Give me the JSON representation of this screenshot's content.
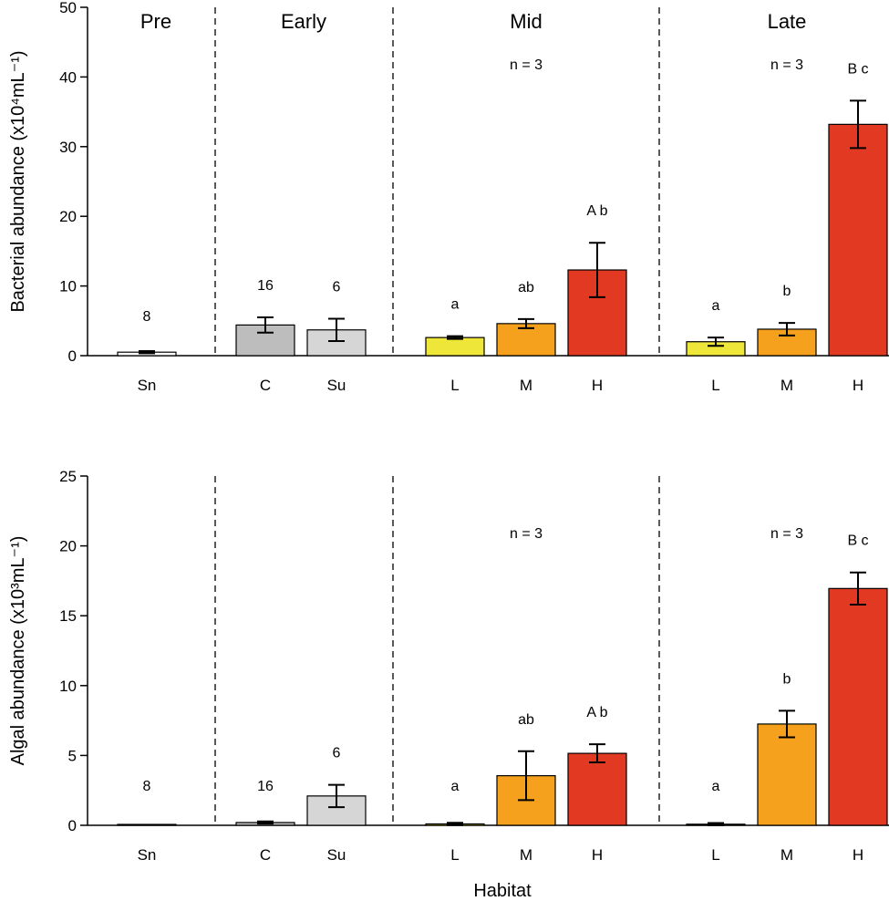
{
  "chart_data": [
    {
      "type": "bar",
      "panel": "top",
      "ylabel": "Bacterial abundance (x10⁴mL⁻¹)",
      "ylim": [
        0,
        50
      ],
      "yticks": [
        "0",
        "10",
        "20",
        "30",
        "40",
        "50"
      ],
      "ytick_values": [
        0,
        10,
        20,
        30,
        40,
        50
      ],
      "stages": [
        "Pre",
        "Early",
        "Mid",
        "Late"
      ],
      "stage_labels_visible": true,
      "stage_n": [
        "",
        "",
        "n = 3",
        "n = 3"
      ],
      "bars": [
        {
          "stage": "Pre",
          "category": "Sn",
          "value": 0.5,
          "error": 0.15,
          "color": "#ffffff",
          "label": "8"
        },
        {
          "stage": "Early",
          "category": "C",
          "value": 4.4,
          "error": 1.1,
          "color": "#bdbdbd",
          "label": "16"
        },
        {
          "stage": "Early",
          "category": "Su",
          "value": 3.7,
          "error": 1.6,
          "color": "#d6d6d6",
          "label": "6"
        },
        {
          "stage": "Mid",
          "category": "L",
          "value": 2.6,
          "error": 0.2,
          "color": "#eee639",
          "label": "a"
        },
        {
          "stage": "Mid",
          "category": "M",
          "value": 4.6,
          "error": 0.65,
          "color": "#f6a11e",
          "label": "ab"
        },
        {
          "stage": "Mid",
          "category": "H",
          "value": 12.3,
          "error": 3.9,
          "color": "#e23a22",
          "label": "A b"
        },
        {
          "stage": "Late",
          "category": "L",
          "value": 2.0,
          "error": 0.6,
          "color": "#eee639",
          "label": "a"
        },
        {
          "stage": "Late",
          "category": "M",
          "value": 3.8,
          "error": 0.9,
          "color": "#f6a11e",
          "label": "b"
        },
        {
          "stage": "Late",
          "category": "H",
          "value": 33.2,
          "error": 3.4,
          "color": "#e23a22",
          "label": "B c"
        }
      ]
    },
    {
      "type": "bar",
      "panel": "bottom",
      "ylabel": "Algal abundance (x10³mL⁻¹)",
      "xlabel": "Habitat",
      "ylim": [
        0,
        25
      ],
      "yticks": [
        "0",
        "5",
        "10",
        "15",
        "20",
        "25"
      ],
      "ytick_values": [
        0,
        5,
        10,
        15,
        20,
        25
      ],
      "stages": [
        "Pre",
        "Early",
        "Mid",
        "Late"
      ],
      "stage_labels_visible": false,
      "stage_n": [
        "",
        "",
        "n = 3",
        "n = 3"
      ],
      "bars": [
        {
          "stage": "Pre",
          "category": "Sn",
          "value": 0.0,
          "error": 0.0,
          "color": "#ffffff",
          "label": "8"
        },
        {
          "stage": "Early",
          "category": "C",
          "value": 0.2,
          "error": 0.08,
          "color": "#bdbdbd",
          "label": "16"
        },
        {
          "stage": "Early",
          "category": "Su",
          "value": 2.1,
          "error": 0.8,
          "color": "#d6d6d6",
          "label": "6"
        },
        {
          "stage": "Mid",
          "category": "L",
          "value": 0.1,
          "error": 0.08,
          "color": "#eee639",
          "label": "a"
        },
        {
          "stage": "Mid",
          "category": "M",
          "value": 3.55,
          "error": 1.75,
          "color": "#f6a11e",
          "label": "ab"
        },
        {
          "stage": "Mid",
          "category": "H",
          "value": 5.15,
          "error": 0.65,
          "color": "#e23a22",
          "label": "A b"
        },
        {
          "stage": "Late",
          "category": "L",
          "value": 0.08,
          "error": 0.08,
          "color": "#eee639",
          "label": "a"
        },
        {
          "stage": "Late",
          "category": "M",
          "value": 7.25,
          "error": 0.95,
          "color": "#f6a11e",
          "label": "b"
        },
        {
          "stage": "Late",
          "category": "H",
          "value": 16.95,
          "error": 1.15,
          "color": "#e23a22",
          "label": "B c"
        }
      ]
    }
  ]
}
